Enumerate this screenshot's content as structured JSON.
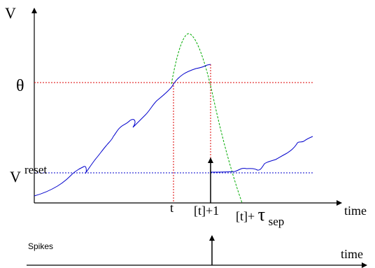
{
  "labels": {
    "v_axis": "V",
    "theta": "θ",
    "v_reset_base": "V",
    "v_reset_sup": "reset",
    "time_top": "time",
    "t_tick": "t",
    "t1_tick": "[t]+1",
    "tsep_base": "[t]+",
    "tsep_tau": "τ",
    "tsep_sub": "sep",
    "spikes": "Spikes",
    "time_bottom": "time"
  },
  "colors": {
    "trace": "#0000cc",
    "threshold": "#dd0000",
    "reset": "#0000cc",
    "parabola": "#00aa00",
    "axis": "#000000"
  }
}
